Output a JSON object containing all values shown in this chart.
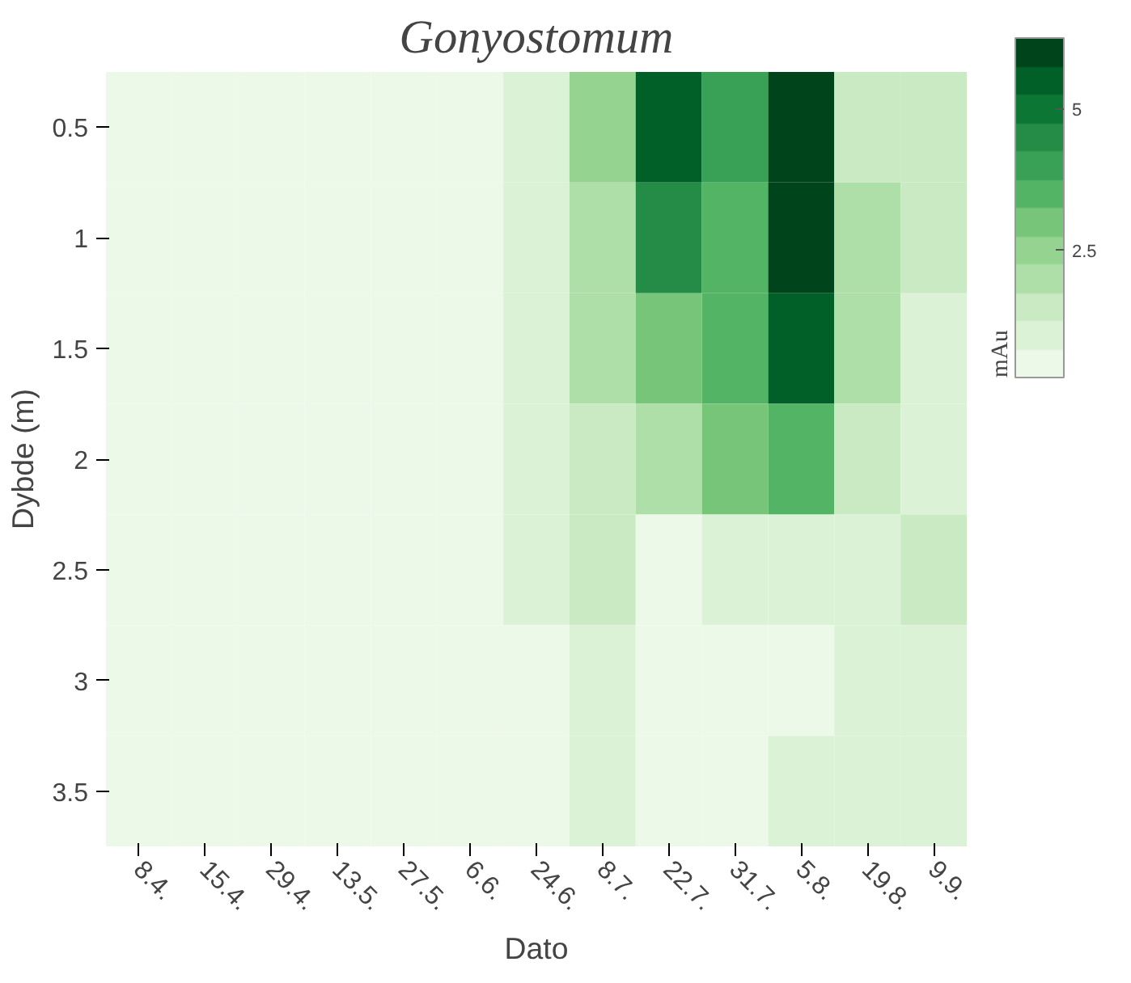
{
  "chart_data": {
    "type": "heatmap",
    "title": "Gonyostomum",
    "xlabel": "Dato",
    "ylabel": "Dybde (m)",
    "clabel": "mAu",
    "categories": [
      "8.4.",
      "15.4.",
      "29.4.",
      "13.5.",
      "27.5.",
      "6.6.",
      "24.6.",
      "8.7.",
      "22.7.",
      "31.7.",
      "5.8.",
      "19.8.",
      "9.9."
    ],
    "y_categories": [
      "0.5",
      "1",
      "1.5",
      "2",
      "2.5",
      "3",
      "3.5"
    ],
    "cells": [
      [
        0.3,
        0.3,
        0.3,
        0.3,
        0.3,
        0.4,
        1.0,
        2.5,
        5.5,
        4.0,
        6.2,
        1.6,
        1.4
      ],
      [
        0.3,
        0.3,
        0.3,
        0.3,
        0.3,
        0.4,
        1.1,
        2.0,
        4.5,
        3.6,
        6.0,
        1.8,
        1.3
      ],
      [
        0.3,
        0.3,
        0.3,
        0.3,
        0.3,
        0.4,
        1.2,
        1.8,
        3.0,
        3.4,
        5.7,
        1.8,
        1.1
      ],
      [
        0.3,
        0.3,
        0.3,
        0.3,
        0.3,
        0.4,
        1.2,
        1.6,
        2.0,
        2.8,
        3.5,
        1.3,
        1.1
      ],
      [
        0.3,
        0.3,
        0.3,
        0.3,
        0.3,
        0.4,
        0.8,
        1.3,
        0.6,
        1.0,
        1.2,
        0.8,
        1.3
      ],
      [
        0.3,
        0.3,
        0.3,
        0.3,
        0.3,
        0.4,
        0.6,
        1.1,
        0.4,
        0.5,
        0.7,
        0.9,
        1.1
      ],
      [
        0.3,
        0.3,
        0.3,
        0.3,
        0.3,
        0.4,
        0.4,
        0.8,
        0.3,
        0.4,
        0.8,
        1.0,
        0.9
      ]
    ],
    "clim": [
      0.25,
      6.25
    ],
    "cticks": [
      2.5,
      5
    ]
  }
}
